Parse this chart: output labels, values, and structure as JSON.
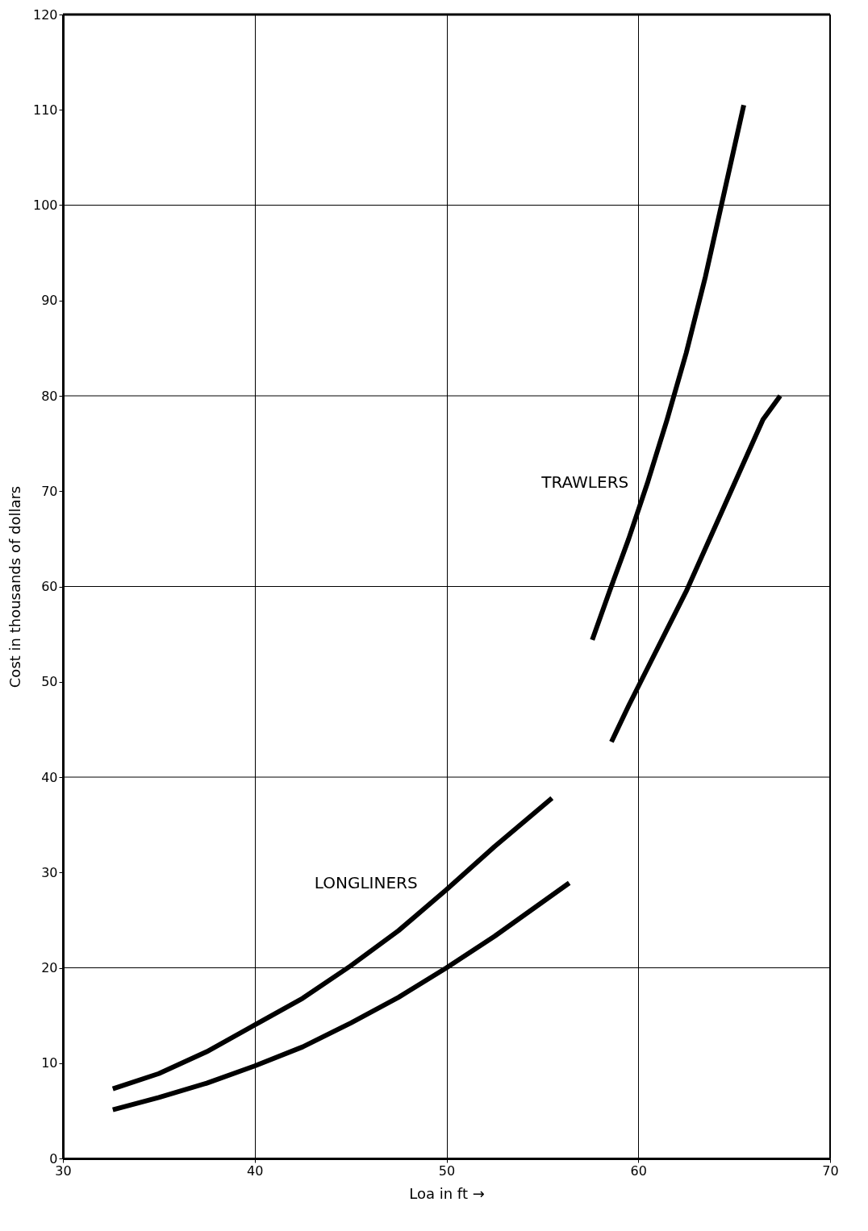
{
  "chart_data": {
    "type": "line",
    "xlabel": "Loa in ft →",
    "ylabel": "Cost in thousands of dollars",
    "xlim": [
      30,
      70
    ],
    "xticks": [
      30,
      40,
      50,
      60,
      70
    ],
    "ylim": [
      0,
      120
    ],
    "yticks": [
      0,
      10,
      20,
      30,
      40,
      50,
      60,
      70,
      80,
      90,
      100,
      110,
      120
    ],
    "grid": true,
    "line_style": "solid",
    "marker": "none",
    "series": [
      {
        "color": "#000000",
        "x": [
          32.6,
          35,
          37.5,
          40,
          42.5,
          45,
          47.5,
          50,
          52.5,
          55.5
        ],
        "values": [
          7.3,
          8.9,
          11.2,
          14,
          16.8,
          20.2,
          23.9,
          28.2,
          32.7,
          37.8
        ]
      },
      {
        "color": "#000000",
        "x": [
          32.6,
          35,
          37.5,
          40,
          42.5,
          45,
          47.5,
          50,
          52.5,
          56.4
        ],
        "values": [
          5.1,
          6.4,
          7.9,
          9.7,
          11.7,
          14.2,
          16.9,
          20,
          23.3,
          28.9
        ]
      },
      {
        "color": "#000000",
        "x": [
          57.6,
          58.5,
          59.5,
          60.5,
          61.5,
          62.5,
          63.5,
          64.5,
          65.5
        ],
        "values": [
          54.4,
          59.5,
          65,
          71,
          77.5,
          84.5,
          92.5,
          101.5,
          110.5
        ]
      },
      {
        "color": "#000000",
        "x": [
          58.6,
          59.5,
          60.5,
          61.5,
          62.5,
          63.5,
          64.5,
          65.5,
          66.5,
          67.4
        ],
        "values": [
          43.7,
          47.5,
          51.5,
          55.5,
          59.5,
          64,
          68.5,
          73,
          77.5,
          80
        ]
      }
    ],
    "annotations": [
      {
        "text": "LONGLINERS",
        "x": 49,
        "y": 26
      },
      {
        "text": "TRAWLERS",
        "x": 60,
        "y": 68
      }
    ]
  }
}
